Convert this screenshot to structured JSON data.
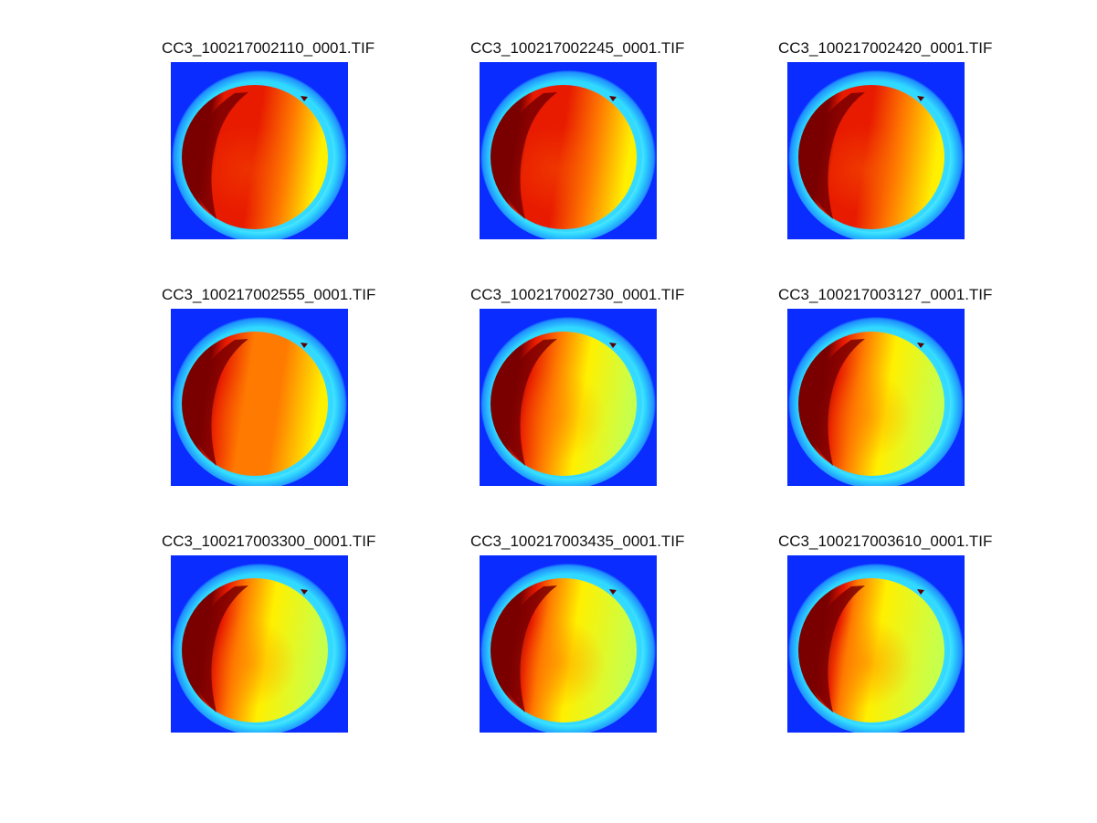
{
  "figure": {
    "panels": [
      {
        "title": "CC3_100217002110_0001.TIF",
        "variant": 0
      },
      {
        "title": "CC3_100217002245_0001.TIF",
        "variant": 1
      },
      {
        "title": "CC3_100217002420_0001.TIF",
        "variant": 2
      },
      {
        "title": "CC3_100217002555_0001.TIF",
        "variant": 3
      },
      {
        "title": "CC3_100217002730_0001.TIF",
        "variant": 4
      },
      {
        "title": "CC3_100217003127_0001.TIF",
        "variant": 5
      },
      {
        "title": "CC3_100217003300_0001.TIF",
        "variant": 6
      },
      {
        "title": "CC3_100217003435_0001.TIF",
        "variant": 7
      },
      {
        "title": "CC3_100217003610_0001.TIF",
        "variant": 8
      }
    ]
  },
  "colors": {
    "background_blue": "#0a2cff",
    "halo_cyan": "#2fd8ff",
    "halo_light": "#7ff5ff",
    "hot_red": "#e81a00",
    "dark_red": "#7a0000",
    "mid_orange": "#ff7a00",
    "yellow": "#fff000",
    "green_yellow": "#c8ff4a"
  }
}
